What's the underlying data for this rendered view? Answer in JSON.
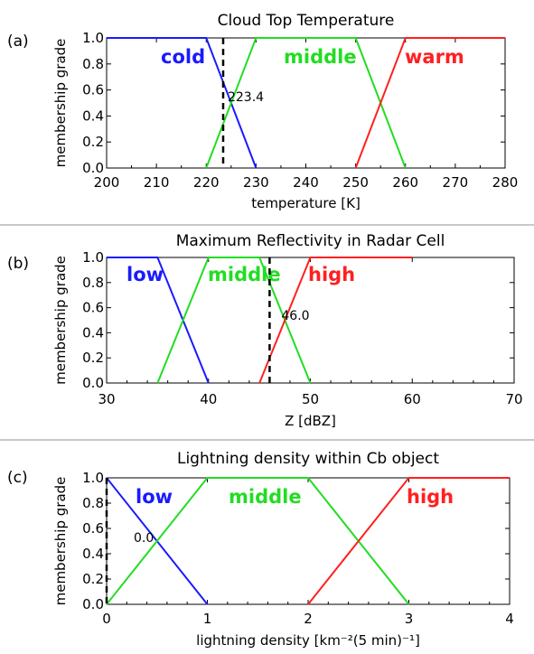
{
  "figure": {
    "separator_color": "#c8c8c8"
  },
  "chart_data": [
    {
      "type": "line",
      "panel_label": "(a)",
      "title": "Cloud Top Temperature",
      "xlabel": "temperature [K]",
      "ylabel": "membership grade",
      "xlim": [
        200,
        280
      ],
      "ylim": [
        0,
        1
      ],
      "xticks": [
        "200",
        "210",
        "220",
        "230",
        "240",
        "250",
        "260",
        "270",
        "280"
      ],
      "yticks": [
        "0.0",
        "0.2",
        "0.4",
        "0.6",
        "0.8",
        "1.0"
      ],
      "series": [
        {
          "name": "cold",
          "color": "#1a1aff",
          "x": [
            200,
            220,
            230
          ],
          "y": [
            1,
            1,
            0
          ]
        },
        {
          "name": "middle",
          "color": "#22dd22",
          "x": [
            220,
            230,
            250,
            260
          ],
          "y": [
            0,
            1,
            1,
            0
          ]
        },
        {
          "name": "warm",
          "color": "#ff2020",
          "x": [
            250,
            260,
            280
          ],
          "y": [
            0,
            1,
            1
          ]
        }
      ],
      "vline": {
        "x": 223.4,
        "label": "223.4"
      }
    },
    {
      "type": "line",
      "panel_label": "(b)",
      "title": "Maximum Reflectivity in Radar Cell",
      "xlabel": "Z [dBZ]",
      "ylabel": "membership grade",
      "xlim": [
        30,
        70
      ],
      "ylim": [
        0,
        1
      ],
      "xticks": [
        "30",
        "40",
        "50",
        "60",
        "70"
      ],
      "yticks": [
        "0.0",
        "0.2",
        "0.4",
        "0.6",
        "0.8",
        "1.0"
      ],
      "series": [
        {
          "name": "low",
          "color": "#1a1aff",
          "x": [
            30,
            35,
            40
          ],
          "y": [
            1,
            1,
            0
          ]
        },
        {
          "name": "middle",
          "color": "#22dd22",
          "x": [
            35,
            40,
            45,
            50
          ],
          "y": [
            0,
            1,
            1,
            0
          ]
        },
        {
          "name": "high",
          "color": "#ff2020",
          "x": [
            45,
            50,
            60
          ],
          "y": [
            0,
            1,
            1
          ]
        }
      ],
      "vline": {
        "x": 46.0,
        "label": "46.0"
      }
    },
    {
      "type": "line",
      "panel_label": "(c)",
      "title": "Lightning density within Cb object",
      "xlabel": "lightning density [km⁻²(5 min)⁻¹]",
      "ylabel": "membership grade",
      "xlim": [
        0,
        4
      ],
      "ylim": [
        0,
        1
      ],
      "xticks": [
        "0",
        "1",
        "2",
        "3",
        "4"
      ],
      "yticks": [
        "0.0",
        "0.2",
        "0.4",
        "0.6",
        "0.8",
        "1.0"
      ],
      "series": [
        {
          "name": "low",
          "color": "#1a1aff",
          "x": [
            0,
            1
          ],
          "y": [
            1,
            0
          ]
        },
        {
          "name": "middle",
          "color": "#22dd22",
          "x": [
            0,
            1,
            2,
            3
          ],
          "y": [
            0,
            1,
            1,
            0
          ]
        },
        {
          "name": "high",
          "color": "#ff2020",
          "x": [
            2,
            3,
            4
          ],
          "y": [
            0,
            1,
            1
          ]
        }
      ],
      "vline": {
        "x": 0.0,
        "label": "0.0"
      }
    }
  ]
}
